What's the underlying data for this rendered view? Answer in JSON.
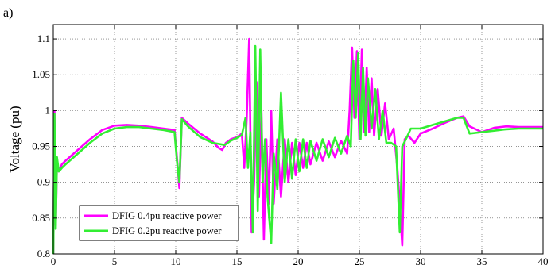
{
  "panel_label": "a)",
  "chart_data": {
    "type": "line",
    "title": "",
    "xlabel": "",
    "ylabel": "Voltage (pu)",
    "xlim": [
      0,
      40
    ],
    "ylim": [
      0.8,
      1.12
    ],
    "xticks": [
      0,
      5,
      10,
      15,
      20,
      25,
      30,
      35,
      40
    ],
    "yticks": [
      0.8,
      0.85,
      0.9,
      0.95,
      1,
      1.05,
      1.1
    ],
    "grid": true,
    "legend_position": "bottom-left",
    "series": [
      {
        "name": "DFIG 0.4pu reactive power",
        "color": "#ff00ff",
        "points": [
          [
            0,
            0.8
          ],
          [
            0.1,
            1.0
          ],
          [
            0.2,
            0.84
          ],
          [
            0.3,
            0.93
          ],
          [
            0.45,
            0.915
          ],
          [
            0.7,
            0.925
          ],
          [
            1,
            0.93
          ],
          [
            2,
            0.945
          ],
          [
            3,
            0.96
          ],
          [
            4,
            0.973
          ],
          [
            5,
            0.979
          ],
          [
            6,
            0.98
          ],
          [
            7,
            0.979
          ],
          [
            8,
            0.977
          ],
          [
            9,
            0.975
          ],
          [
            9.9,
            0.973
          ],
          [
            10.1,
            0.935
          ],
          [
            10.3,
            0.892
          ],
          [
            10.5,
            0.99
          ],
          [
            11,
            0.982
          ],
          [
            12,
            0.968
          ],
          [
            13,
            0.957
          ],
          [
            13.5,
            0.948
          ],
          [
            13.8,
            0.945
          ],
          [
            14.1,
            0.955
          ],
          [
            14.5,
            0.96
          ],
          [
            15,
            0.963
          ],
          [
            15.4,
            0.968
          ],
          [
            15.6,
            0.92
          ],
          [
            15.8,
            0.99
          ],
          [
            16,
            1.1
          ],
          [
            16.2,
            0.83
          ],
          [
            16.4,
            0.9
          ],
          [
            16.6,
            1.04
          ],
          [
            16.8,
            0.88
          ],
          [
            17,
            1.0
          ],
          [
            17.2,
            0.82
          ],
          [
            17.4,
            0.96
          ],
          [
            17.6,
            0.87
          ],
          [
            17.8,
            1.0
          ],
          [
            18,
            0.87
          ],
          [
            18.3,
            0.96
          ],
          [
            18.6,
            0.88
          ],
          [
            18.9,
            0.96
          ],
          [
            19.2,
            0.9
          ],
          [
            19.5,
            0.955
          ],
          [
            19.8,
            0.91
          ],
          [
            20.1,
            0.955
          ],
          [
            20.4,
            0.92
          ],
          [
            20.7,
            0.955
          ],
          [
            21,
            0.925
          ],
          [
            21.5,
            0.955
          ],
          [
            22,
            0.93
          ],
          [
            22.5,
            0.957
          ],
          [
            23,
            0.935
          ],
          [
            23.5,
            0.958
          ],
          [
            24,
            0.94
          ],
          [
            24.2,
            1.0
          ],
          [
            24.4,
            1.088
          ],
          [
            24.6,
            0.99
          ],
          [
            24.8,
            1.083
          ],
          [
            25,
            0.96
          ],
          [
            25.2,
            1.085
          ],
          [
            25.4,
            0.97
          ],
          [
            25.6,
            1.06
          ],
          [
            25.8,
            0.97
          ],
          [
            26,
            1.045
          ],
          [
            26.2,
            0.965
          ],
          [
            26.5,
            1.03
          ],
          [
            26.8,
            0.965
          ],
          [
            27.1,
            1.01
          ],
          [
            27.4,
            0.96
          ],
          [
            27.8,
            0.975
          ],
          [
            28.1,
            0.92
          ],
          [
            28.3,
            0.87
          ],
          [
            28.5,
            0.812
          ],
          [
            28.7,
            0.96
          ],
          [
            29,
            0.965
          ],
          [
            29.5,
            0.955
          ],
          [
            30,
            0.968
          ],
          [
            31,
            0.975
          ],
          [
            32,
            0.983
          ],
          [
            33,
            0.99
          ],
          [
            33.5,
            0.992
          ],
          [
            34,
            0.978
          ],
          [
            35,
            0.97
          ],
          [
            36,
            0.976
          ],
          [
            37,
            0.978
          ],
          [
            38,
            0.977
          ],
          [
            40,
            0.977
          ]
        ]
      },
      {
        "name": "DFIG 0.2pu reactive power",
        "color": "#33ee33",
        "points": [
          [
            0,
            0.8
          ],
          [
            0.1,
            0.995
          ],
          [
            0.2,
            0.835
          ],
          [
            0.3,
            0.935
          ],
          [
            0.45,
            0.915
          ],
          [
            0.7,
            0.92
          ],
          [
            1,
            0.925
          ],
          [
            2,
            0.94
          ],
          [
            3,
            0.955
          ],
          [
            4,
            0.968
          ],
          [
            5,
            0.975
          ],
          [
            6,
            0.977
          ],
          [
            7,
            0.977
          ],
          [
            8,
            0.975
          ],
          [
            9,
            0.973
          ],
          [
            9.9,
            0.97
          ],
          [
            10.1,
            0.93
          ],
          [
            10.3,
            0.9
          ],
          [
            10.5,
            0.988
          ],
          [
            11,
            0.978
          ],
          [
            12,
            0.963
          ],
          [
            13,
            0.955
          ],
          [
            14,
            0.952
          ],
          [
            14.5,
            0.958
          ],
          [
            15,
            0.962
          ],
          [
            15.4,
            0.966
          ],
          [
            15.7,
            0.99
          ],
          [
            15.9,
            0.92
          ],
          [
            16.1,
            0.97
          ],
          [
            16.3,
            0.83
          ],
          [
            16.5,
            1.09
          ],
          [
            16.7,
            0.86
          ],
          [
            16.9,
            1.085
          ],
          [
            17.1,
            0.9
          ],
          [
            17.3,
            0.96
          ],
          [
            17.5,
            0.88
          ],
          [
            17.8,
            0.815
          ],
          [
            18,
            0.94
          ],
          [
            18.3,
            0.89
          ],
          [
            18.6,
            1.025
          ],
          [
            18.9,
            0.9
          ],
          [
            19.2,
            0.96
          ],
          [
            19.5,
            0.905
          ],
          [
            19.8,
            0.96
          ],
          [
            20.1,
            0.915
          ],
          [
            20.4,
            0.96
          ],
          [
            20.7,
            0.92
          ],
          [
            21,
            0.958
          ],
          [
            21.5,
            0.93
          ],
          [
            22,
            0.96
          ],
          [
            22.5,
            0.935
          ],
          [
            23,
            0.962
          ],
          [
            23.5,
            0.94
          ],
          [
            24,
            0.965
          ],
          [
            24.3,
            0.95
          ],
          [
            24.5,
            1.07
          ],
          [
            24.7,
            0.99
          ],
          [
            24.9,
            1.08
          ],
          [
            25.1,
            0.96
          ],
          [
            25.3,
            1.06
          ],
          [
            25.5,
            0.965
          ],
          [
            25.7,
            1.045
          ],
          [
            26,
            0.975
          ],
          [
            26.3,
            1.03
          ],
          [
            26.6,
            0.96
          ],
          [
            26.9,
            1.0
          ],
          [
            27.2,
            0.955
          ],
          [
            27.6,
            0.955
          ],
          [
            28,
            0.95
          ],
          [
            28.3,
            0.83
          ],
          [
            28.5,
            0.95
          ],
          [
            28.8,
            0.96
          ],
          [
            29.2,
            0.975
          ],
          [
            30,
            0.975
          ],
          [
            31,
            0.98
          ],
          [
            32,
            0.985
          ],
          [
            33,
            0.99
          ],
          [
            33.5,
            0.99
          ],
          [
            34,
            0.968
          ],
          [
            35,
            0.97
          ],
          [
            36,
            0.972
          ],
          [
            37,
            0.974
          ],
          [
            38,
            0.975
          ],
          [
            40,
            0.975
          ]
        ]
      }
    ]
  }
}
